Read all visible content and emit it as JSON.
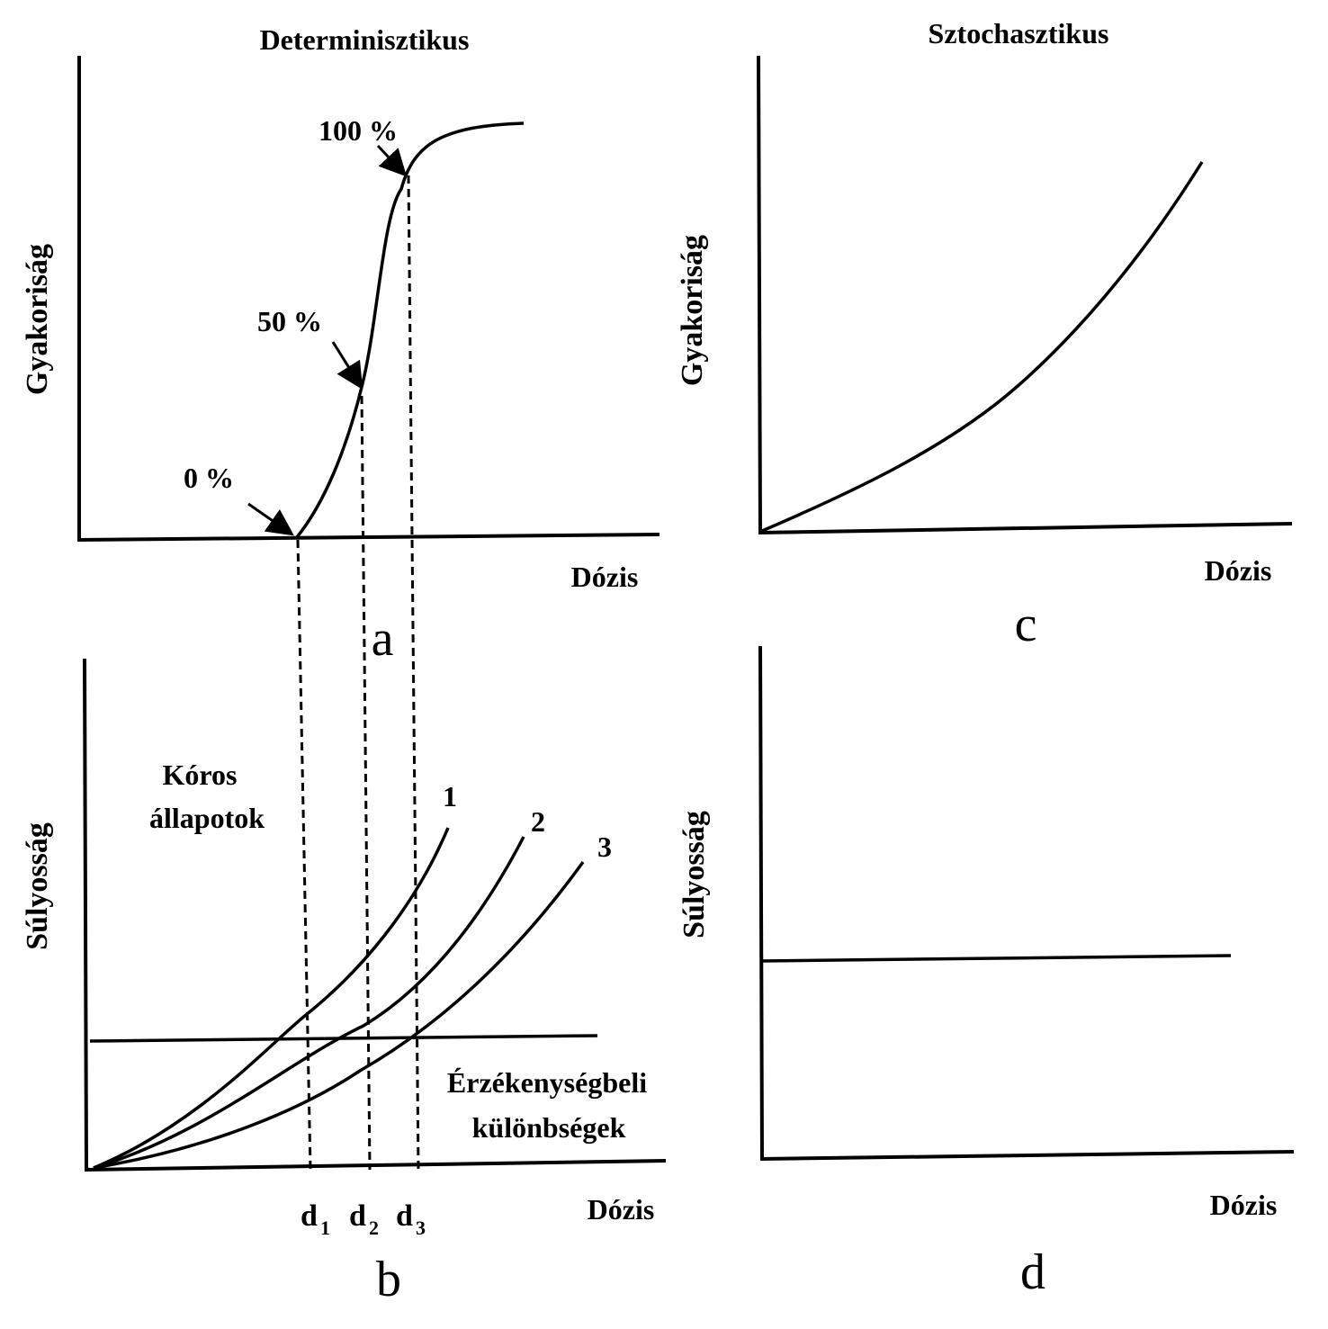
{
  "panel_a": {
    "title": "Determinisztikus",
    "ylabel": "Gyakoriság",
    "xlabel": "Dózis",
    "letter": "a",
    "annotations": [
      "0 %",
      "50 %",
      "100 %"
    ]
  },
  "panel_b": {
    "ylabel": "Súlyosság",
    "xlabel": "Dózis",
    "letter": "b",
    "label_pathological_line1": "Kóros",
    "label_pathological_line2": "állapotok",
    "label_sensitivity_line1": "Érzékenységbeli",
    "label_sensitivity_line2": "különbségek",
    "curve_labels": [
      "1",
      "2",
      "3"
    ],
    "dose_marks": [
      "d",
      "d",
      "d"
    ],
    "dose_subscripts": [
      "1",
      "2",
      "3"
    ]
  },
  "panel_c": {
    "title": "Sztochasztikus",
    "ylabel": "Gyakoriság",
    "xlabel": "Dózis",
    "letter": "c"
  },
  "panel_d": {
    "ylabel": "Súlyosság",
    "xlabel": "Dózis",
    "letter": "d"
  },
  "colors": {
    "ink": "#000000",
    "background": "#ffffff"
  }
}
